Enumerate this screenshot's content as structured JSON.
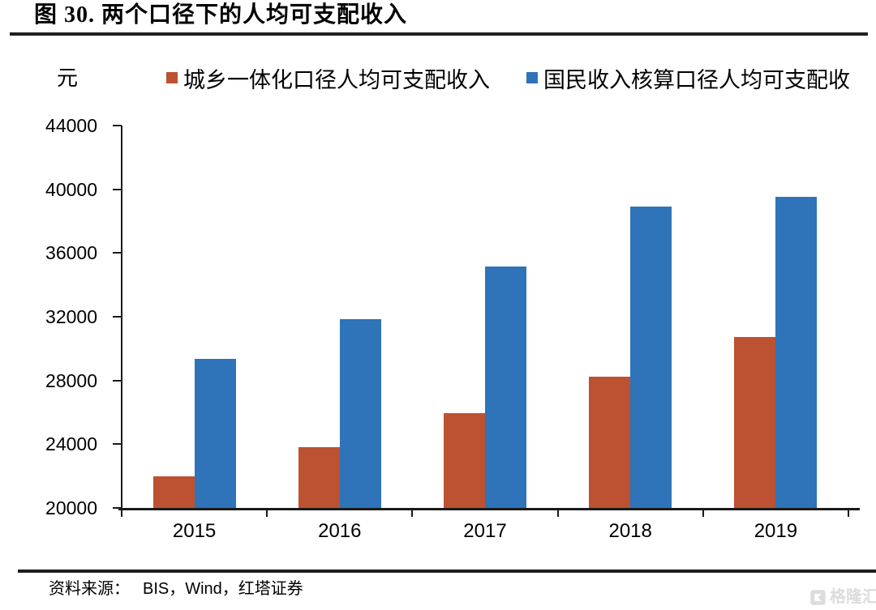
{
  "figure": {
    "title": "图 30. 两个口径下的人均可支配收入"
  },
  "axes": {
    "unit_label": "元",
    "y_ticks": [
      "44000",
      "40000",
      "36000",
      "32000",
      "28000",
      "24000",
      "20000"
    ]
  },
  "legend": {
    "items": [
      {
        "label": "城乡一体化口径人均可支配收入",
        "color": "#BC5231"
      },
      {
        "label": "国民收入核算口径人均可支配收",
        "color": "#2F73B9"
      }
    ]
  },
  "chart_data": {
    "type": "bar",
    "title": "图 30. 两个口径下的人均可支配收入",
    "unit": "元",
    "categories": [
      "2015",
      "2016",
      "2017",
      "2018",
      "2019"
    ],
    "series": [
      {
        "key": "series1",
        "name": "城乡一体化口径人均可支配收入",
        "color": "#BC5231",
        "values": [
          21966,
          23821,
          25974,
          28228,
          30733
        ]
      },
      {
        "key": "series2",
        "name": "国民收入核算口径人均可支配收",
        "color": "#2F73B9",
        "values": [
          29350,
          31850,
          35150,
          38900,
          39550
        ]
      }
    ],
    "ylim": [
      20000,
      44000
    ],
    "ytick_step": 4000,
    "grid": false,
    "legend_position": "top"
  },
  "footer": {
    "source_label": "资料来源：",
    "source_text": "BIS，Wind，红塔证券",
    "watermark_text": "格隆汇"
  }
}
